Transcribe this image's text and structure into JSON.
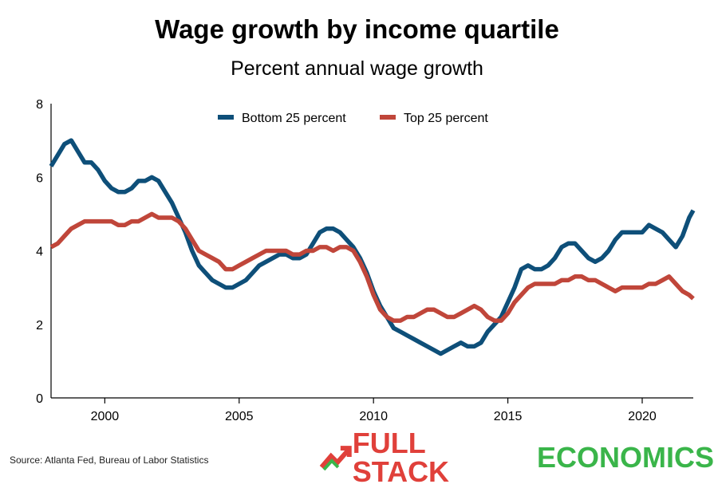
{
  "header": {
    "title": "Wage growth by income quartile",
    "subtitle": "Percent annual wage growth"
  },
  "footer": {
    "source": "Source:  Atlanta Fed, Bureau of Labor Statistics",
    "brand_part1": "FULL STACK",
    "brand_part2": "ECONOMICS"
  },
  "colors": {
    "bottom": "#0e4f79",
    "top": "#c0463a",
    "brand_red": "#e0403a",
    "brand_green": "#3ab54a"
  },
  "chart_data": {
    "type": "line",
    "title": "Wage growth by income quartile",
    "subtitle": "Percent annual wage growth",
    "xlim": [
      1998.0,
      2021.9
    ],
    "ylim": [
      0,
      8
    ],
    "x_ticks": [
      2000,
      2005,
      2010,
      2015,
      2020
    ],
    "y_ticks": [
      0,
      2,
      4,
      6,
      8
    ],
    "legend_position": "top-center",
    "grid": false,
    "series": [
      {
        "name": "Bottom 25 percent",
        "color": "#0e4f79",
        "points": [
          [
            1998.0,
            6.3
          ],
          [
            1998.25,
            6.6
          ],
          [
            1998.5,
            6.9
          ],
          [
            1998.75,
            7.0
          ],
          [
            1999.0,
            6.7
          ],
          [
            1999.25,
            6.4
          ],
          [
            1999.5,
            6.4
          ],
          [
            1999.75,
            6.2
          ],
          [
            2000.0,
            5.9
          ],
          [
            2000.25,
            5.7
          ],
          [
            2000.5,
            5.6
          ],
          [
            2000.75,
            5.6
          ],
          [
            2001.0,
            5.7
          ],
          [
            2001.25,
            5.9
          ],
          [
            2001.5,
            5.9
          ],
          [
            2001.75,
            6.0
          ],
          [
            2002.0,
            5.9
          ],
          [
            2002.25,
            5.6
          ],
          [
            2002.5,
            5.3
          ],
          [
            2002.75,
            4.9
          ],
          [
            2003.0,
            4.5
          ],
          [
            2003.25,
            4.0
          ],
          [
            2003.5,
            3.6
          ],
          [
            2003.75,
            3.4
          ],
          [
            2004.0,
            3.2
          ],
          [
            2004.25,
            3.1
          ],
          [
            2004.5,
            3.0
          ],
          [
            2004.75,
            3.0
          ],
          [
            2005.0,
            3.1
          ],
          [
            2005.25,
            3.2
          ],
          [
            2005.5,
            3.4
          ],
          [
            2005.75,
            3.6
          ],
          [
            2006.0,
            3.7
          ],
          [
            2006.25,
            3.8
          ],
          [
            2006.5,
            3.9
          ],
          [
            2006.75,
            3.9
          ],
          [
            2007.0,
            3.8
          ],
          [
            2007.25,
            3.8
          ],
          [
            2007.5,
            3.9
          ],
          [
            2007.75,
            4.2
          ],
          [
            2008.0,
            4.5
          ],
          [
            2008.25,
            4.6
          ],
          [
            2008.5,
            4.6
          ],
          [
            2008.75,
            4.5
          ],
          [
            2009.0,
            4.3
          ],
          [
            2009.25,
            4.1
          ],
          [
            2009.5,
            3.8
          ],
          [
            2009.75,
            3.4
          ],
          [
            2010.0,
            2.9
          ],
          [
            2010.25,
            2.5
          ],
          [
            2010.5,
            2.2
          ],
          [
            2010.75,
            1.9
          ],
          [
            2011.0,
            1.8
          ],
          [
            2011.25,
            1.7
          ],
          [
            2011.5,
            1.6
          ],
          [
            2011.75,
            1.5
          ],
          [
            2012.0,
            1.4
          ],
          [
            2012.25,
            1.3
          ],
          [
            2012.5,
            1.2
          ],
          [
            2012.75,
            1.3
          ],
          [
            2013.0,
            1.4
          ],
          [
            2013.25,
            1.5
          ],
          [
            2013.5,
            1.4
          ],
          [
            2013.75,
            1.4
          ],
          [
            2014.0,
            1.5
          ],
          [
            2014.25,
            1.8
          ],
          [
            2014.5,
            2.0
          ],
          [
            2014.75,
            2.2
          ],
          [
            2015.0,
            2.6
          ],
          [
            2015.25,
            3.0
          ],
          [
            2015.5,
            3.5
          ],
          [
            2015.75,
            3.6
          ],
          [
            2016.0,
            3.5
          ],
          [
            2016.25,
            3.5
          ],
          [
            2016.5,
            3.6
          ],
          [
            2016.75,
            3.8
          ],
          [
            2017.0,
            4.1
          ],
          [
            2017.25,
            4.2
          ],
          [
            2017.5,
            4.2
          ],
          [
            2017.75,
            4.0
          ],
          [
            2018.0,
            3.8
          ],
          [
            2018.25,
            3.7
          ],
          [
            2018.5,
            3.8
          ],
          [
            2018.75,
            4.0
          ],
          [
            2019.0,
            4.3
          ],
          [
            2019.25,
            4.5
          ],
          [
            2019.5,
            4.5
          ],
          [
            2019.75,
            4.5
          ],
          [
            2020.0,
            4.5
          ],
          [
            2020.25,
            4.7
          ],
          [
            2020.5,
            4.6
          ],
          [
            2020.75,
            4.5
          ],
          [
            2021.0,
            4.3
          ],
          [
            2021.25,
            4.1
          ],
          [
            2021.5,
            4.4
          ],
          [
            2021.75,
            4.9
          ],
          [
            2021.9,
            5.1
          ]
        ]
      },
      {
        "name": "Top 25 percent",
        "color": "#c0463a",
        "points": [
          [
            1998.0,
            4.1
          ],
          [
            1998.25,
            4.2
          ],
          [
            1998.5,
            4.4
          ],
          [
            1998.75,
            4.6
          ],
          [
            1999.0,
            4.7
          ],
          [
            1999.25,
            4.8
          ],
          [
            1999.5,
            4.8
          ],
          [
            1999.75,
            4.8
          ],
          [
            2000.0,
            4.8
          ],
          [
            2000.25,
            4.8
          ],
          [
            2000.5,
            4.7
          ],
          [
            2000.75,
            4.7
          ],
          [
            2001.0,
            4.8
          ],
          [
            2001.25,
            4.8
          ],
          [
            2001.5,
            4.9
          ],
          [
            2001.75,
            5.0
          ],
          [
            2002.0,
            4.9
          ],
          [
            2002.25,
            4.9
          ],
          [
            2002.5,
            4.9
          ],
          [
            2002.75,
            4.8
          ],
          [
            2003.0,
            4.6
          ],
          [
            2003.25,
            4.3
          ],
          [
            2003.5,
            4.0
          ],
          [
            2003.75,
            3.9
          ],
          [
            2004.0,
            3.8
          ],
          [
            2004.25,
            3.7
          ],
          [
            2004.5,
            3.5
          ],
          [
            2004.75,
            3.5
          ],
          [
            2005.0,
            3.6
          ],
          [
            2005.25,
            3.7
          ],
          [
            2005.5,
            3.8
          ],
          [
            2005.75,
            3.9
          ],
          [
            2006.0,
            4.0
          ],
          [
            2006.25,
            4.0
          ],
          [
            2006.5,
            4.0
          ],
          [
            2006.75,
            4.0
          ],
          [
            2007.0,
            3.9
          ],
          [
            2007.25,
            3.9
          ],
          [
            2007.5,
            4.0
          ],
          [
            2007.75,
            4.0
          ],
          [
            2008.0,
            4.1
          ],
          [
            2008.25,
            4.1
          ],
          [
            2008.5,
            4.0
          ],
          [
            2008.75,
            4.1
          ],
          [
            2009.0,
            4.1
          ],
          [
            2009.25,
            4.0
          ],
          [
            2009.5,
            3.7
          ],
          [
            2009.75,
            3.3
          ],
          [
            2010.0,
            2.8
          ],
          [
            2010.25,
            2.4
          ],
          [
            2010.5,
            2.2
          ],
          [
            2010.75,
            2.1
          ],
          [
            2011.0,
            2.1
          ],
          [
            2011.25,
            2.2
          ],
          [
            2011.5,
            2.2
          ],
          [
            2011.75,
            2.3
          ],
          [
            2012.0,
            2.4
          ],
          [
            2012.25,
            2.4
          ],
          [
            2012.5,
            2.3
          ],
          [
            2012.75,
            2.2
          ],
          [
            2013.0,
            2.2
          ],
          [
            2013.25,
            2.3
          ],
          [
            2013.5,
            2.4
          ],
          [
            2013.75,
            2.5
          ],
          [
            2014.0,
            2.4
          ],
          [
            2014.25,
            2.2
          ],
          [
            2014.5,
            2.1
          ],
          [
            2014.75,
            2.1
          ],
          [
            2015.0,
            2.3
          ],
          [
            2015.25,
            2.6
          ],
          [
            2015.5,
            2.8
          ],
          [
            2015.75,
            3.0
          ],
          [
            2016.0,
            3.1
          ],
          [
            2016.25,
            3.1
          ],
          [
            2016.5,
            3.1
          ],
          [
            2016.75,
            3.1
          ],
          [
            2017.0,
            3.2
          ],
          [
            2017.25,
            3.2
          ],
          [
            2017.5,
            3.3
          ],
          [
            2017.75,
            3.3
          ],
          [
            2018.0,
            3.2
          ],
          [
            2018.25,
            3.2
          ],
          [
            2018.5,
            3.1
          ],
          [
            2018.75,
            3.0
          ],
          [
            2019.0,
            2.9
          ],
          [
            2019.25,
            3.0
          ],
          [
            2019.5,
            3.0
          ],
          [
            2019.75,
            3.0
          ],
          [
            2020.0,
            3.0
          ],
          [
            2020.25,
            3.1
          ],
          [
            2020.5,
            3.1
          ],
          [
            2020.75,
            3.2
          ],
          [
            2021.0,
            3.3
          ],
          [
            2021.25,
            3.1
          ],
          [
            2021.5,
            2.9
          ],
          [
            2021.75,
            2.8
          ],
          [
            2021.9,
            2.7
          ]
        ]
      }
    ]
  }
}
